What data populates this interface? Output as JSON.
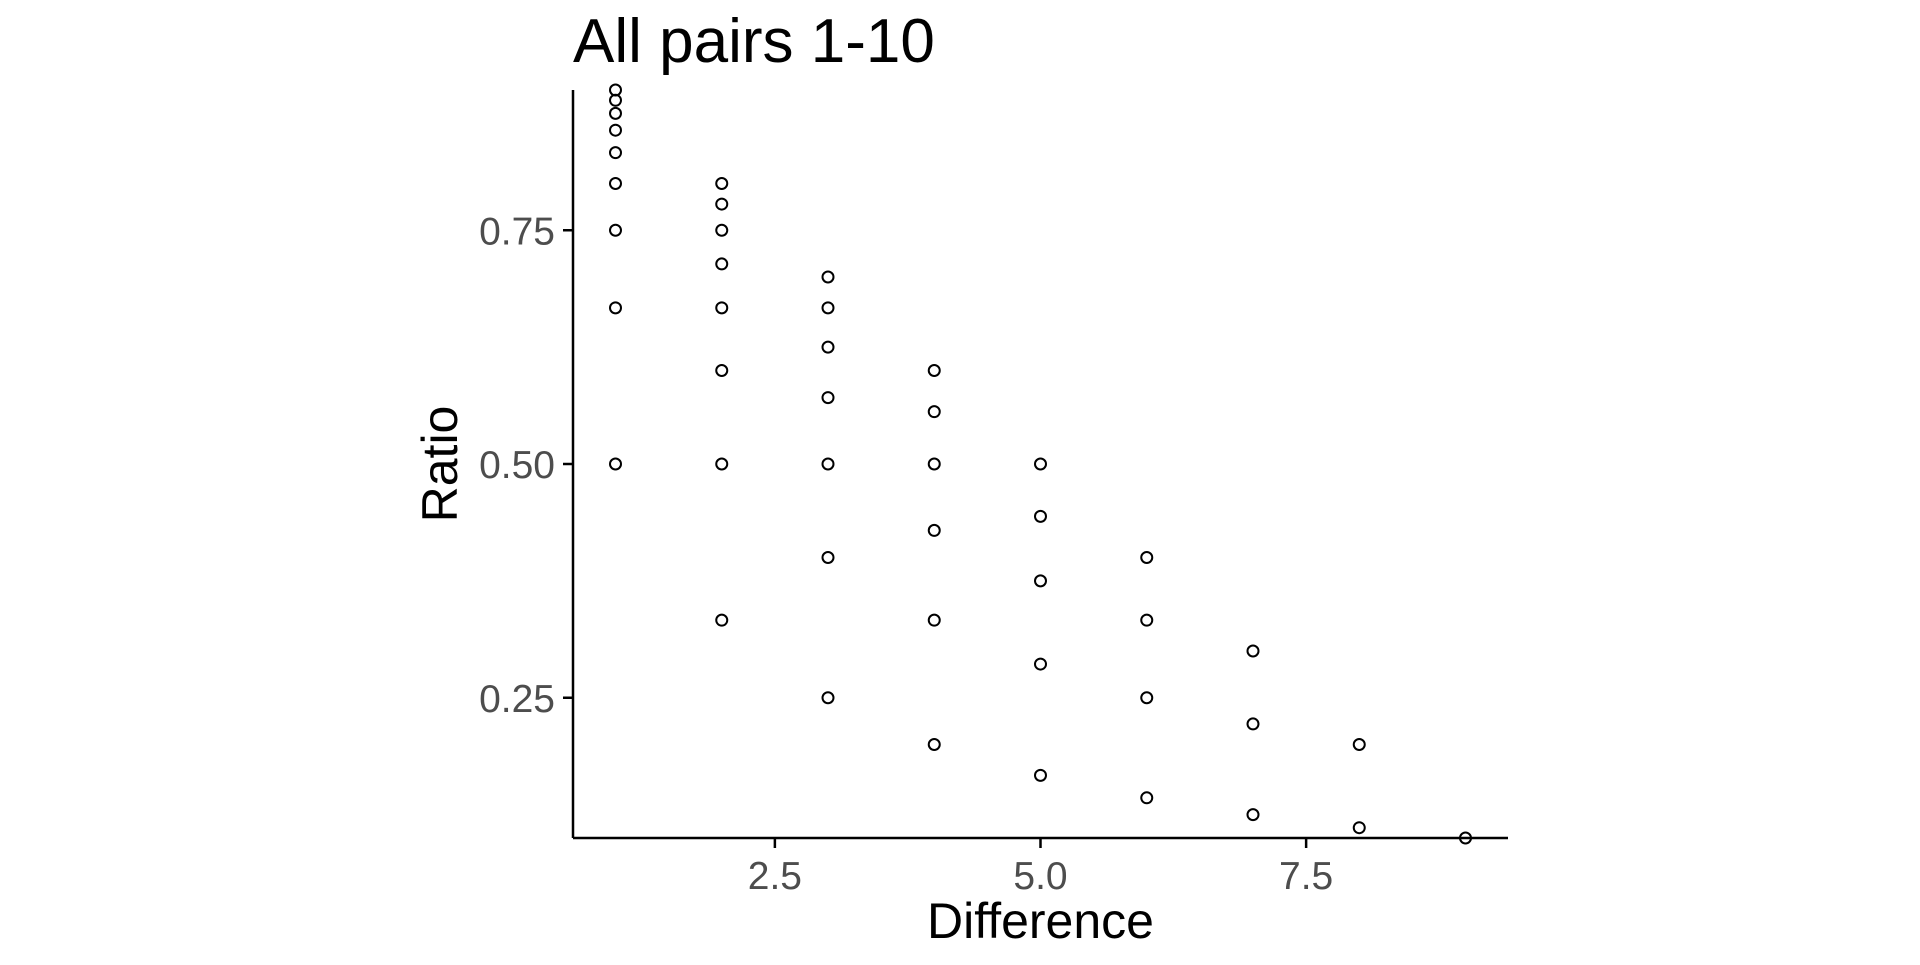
{
  "chart_data": {
    "type": "scatter",
    "title": "All pairs 1-10",
    "xlabel": "Difference",
    "ylabel": "Ratio",
    "xlim": [
      0.6,
      9.4
    ],
    "ylim": [
      0.1,
      0.9
    ],
    "x_ticks": [
      2.5,
      5.0,
      7.5
    ],
    "x_tick_labels": [
      "2.5",
      "5.0",
      "7.5"
    ],
    "y_ticks": [
      0.25,
      0.5,
      0.75
    ],
    "y_tick_labels": [
      "0.25",
      "0.50",
      "0.75"
    ],
    "grid": false,
    "legend": "none",
    "marker": "open-circle",
    "colors": {
      "points": "#000000",
      "tick_labels": "#4d4d4d",
      "axes": "#000000"
    },
    "series": [
      {
        "points": [
          {
            "x": 1,
            "y": 0.5
          },
          {
            "x": 1,
            "y": 0.667
          },
          {
            "x": 1,
            "y": 0.75
          },
          {
            "x": 1,
            "y": 0.8
          },
          {
            "x": 1,
            "y": 0.833
          },
          {
            "x": 1,
            "y": 0.857
          },
          {
            "x": 1,
            "y": 0.875
          },
          {
            "x": 1,
            "y": 0.889
          },
          {
            "x": 1,
            "y": 0.9
          },
          {
            "x": 2,
            "y": 0.333
          },
          {
            "x": 2,
            "y": 0.5
          },
          {
            "x": 2,
            "y": 0.6
          },
          {
            "x": 2,
            "y": 0.667
          },
          {
            "x": 2,
            "y": 0.714
          },
          {
            "x": 2,
            "y": 0.75
          },
          {
            "x": 2,
            "y": 0.778
          },
          {
            "x": 2,
            "y": 0.8
          },
          {
            "x": 3,
            "y": 0.25
          },
          {
            "x": 3,
            "y": 0.4
          },
          {
            "x": 3,
            "y": 0.5
          },
          {
            "x": 3,
            "y": 0.571
          },
          {
            "x": 3,
            "y": 0.625
          },
          {
            "x": 3,
            "y": 0.667
          },
          {
            "x": 3,
            "y": 0.7
          },
          {
            "x": 4,
            "y": 0.2
          },
          {
            "x": 4,
            "y": 0.333
          },
          {
            "x": 4,
            "y": 0.429
          },
          {
            "x": 4,
            "y": 0.5
          },
          {
            "x": 4,
            "y": 0.556
          },
          {
            "x": 4,
            "y": 0.6
          },
          {
            "x": 5,
            "y": 0.167
          },
          {
            "x": 5,
            "y": 0.286
          },
          {
            "x": 5,
            "y": 0.375
          },
          {
            "x": 5,
            "y": 0.444
          },
          {
            "x": 5,
            "y": 0.5
          },
          {
            "x": 6,
            "y": 0.143
          },
          {
            "x": 6,
            "y": 0.25
          },
          {
            "x": 6,
            "y": 0.333
          },
          {
            "x": 6,
            "y": 0.4
          },
          {
            "x": 7,
            "y": 0.125
          },
          {
            "x": 7,
            "y": 0.222
          },
          {
            "x": 7,
            "y": 0.3
          },
          {
            "x": 8,
            "y": 0.111
          },
          {
            "x": 8,
            "y": 0.2
          },
          {
            "x": 9,
            "y": 0.1
          }
        ]
      }
    ]
  }
}
